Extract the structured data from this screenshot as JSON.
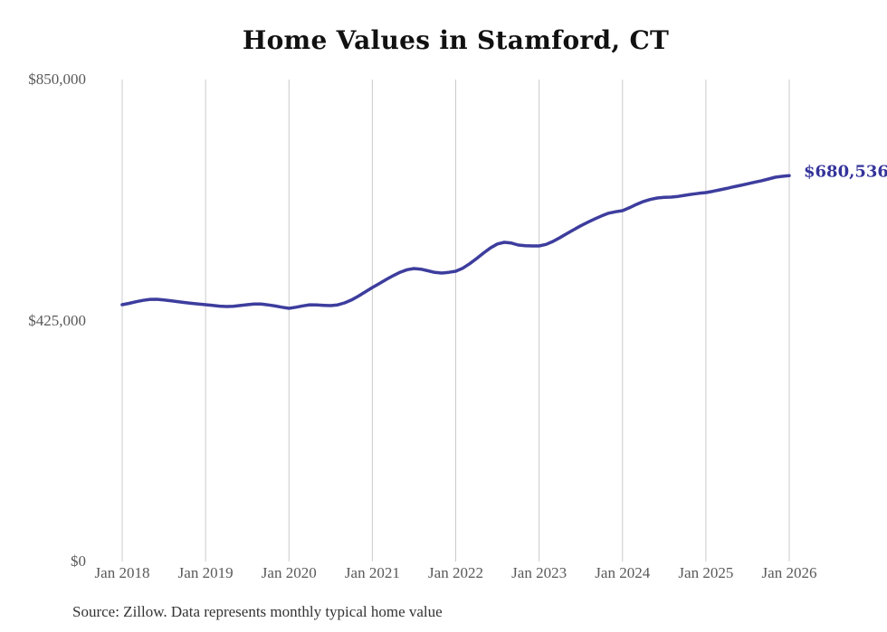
{
  "title": "Home Values in Stamford, CT",
  "source_note": "Source: Zillow. Data represents monthly typical home value",
  "end_label": "$680,536",
  "colors": {
    "line": "#3d3d9e",
    "end_label_text": "#34349b",
    "grid": "#cbcbcb",
    "axis_text": "#595959",
    "title_text": "#111111",
    "source_text": "#333333",
    "background": "#ffffff"
  },
  "chart_data": {
    "type": "line",
    "title": "Home Values in Stamford, CT",
    "xlabel": "",
    "ylabel": "",
    "x_ticks": [
      "Jan 2018",
      "Jan 2019",
      "Jan 2020",
      "Jan 2021",
      "Jan 2022",
      "Jan 2023",
      "Jan 2024",
      "Jan 2025",
      "Jan 2026"
    ],
    "y_ticks": [
      {
        "label": "$0",
        "value": 0
      },
      {
        "label": "$425,000",
        "value": 425000
      },
      {
        "label": "$850,000",
        "value": 850000
      }
    ],
    "ylim": [
      0,
      850000
    ],
    "frequency": "monthly",
    "x_range": [
      "Jan 2018",
      "Jan 2026"
    ],
    "grid": "vertical-only",
    "legend": "none",
    "last_value": 680536,
    "last_value_label": "$680,536",
    "series": [
      {
        "name": "Typical home value",
        "values": [
          452900,
          455300,
          458200,
          460600,
          462300,
          462500,
          461400,
          459900,
          458300,
          456800,
          455300,
          454000,
          452900,
          451600,
          450400,
          449700,
          450100,
          451400,
          452900,
          454200,
          454000,
          452600,
          450600,
          448400,
          446500,
          448400,
          450900,
          452700,
          452500,
          451800,
          451300,
          452600,
          456100,
          461200,
          468100,
          475600,
          483200,
          490300,
          497400,
          504100,
          510100,
          514600,
          516700,
          515600,
          512700,
          509800,
          508700,
          510000,
          511900,
          517200,
          525100,
          534200,
          544000,
          553100,
          560000,
          563000,
          561600,
          558200,
          557000,
          556600,
          556600,
          559200,
          564600,
          571200,
          578300,
          585300,
          592100,
          598300,
          604100,
          609500,
          614300,
          616900,
          618800,
          623900,
          629700,
          634800,
          638600,
          641100,
          642200,
          642700,
          643900,
          645800,
          647800,
          649400,
          650700,
          652900,
          655400,
          658000,
          660800,
          663400,
          666100,
          668800,
          671600,
          674500,
          677800,
          679400,
          680536
        ]
      }
    ]
  }
}
